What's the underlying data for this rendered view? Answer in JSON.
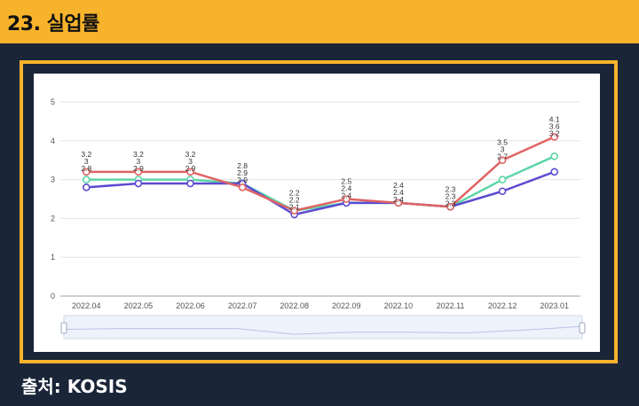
{
  "header": {
    "title": "23. 실업률"
  },
  "footer": {
    "source_label": "출처: KOSIS"
  },
  "colors": {
    "header_bg": "#f7b32b",
    "page_bg": "#1a2538",
    "series_red": "#e06464",
    "series_green": "#5ed6a8",
    "series_blue": "#5b4bd1"
  },
  "chart_data": {
    "type": "line",
    "categories": [
      "2022.04",
      "2022.05",
      "2022.06",
      "2022.07",
      "2022.08",
      "2022.09",
      "2022.10",
      "2022.11",
      "2022.12",
      "2023.01"
    ],
    "ylim": [
      0,
      5
    ],
    "yticks": [
      0,
      1,
      2,
      3,
      4,
      5
    ],
    "grid": true,
    "legend": "none",
    "series": [
      {
        "color": "#e06464",
        "values": [
          3.2,
          3.2,
          3.2,
          2.8,
          2.2,
          2.5,
          2.4,
          2.3,
          3.5,
          4.1
        ]
      },
      {
        "color": "#5ed6a8",
        "values": [
          3,
          3,
          3,
          2.9,
          2.2,
          2.4,
          2.4,
          2.3,
          3,
          3.6
        ]
      },
      {
        "color": "#5b4bd1",
        "values": [
          2.8,
          2.9,
          2.9,
          2.9,
          2.1,
          2.4,
          2.4,
          2.3,
          2.7,
          3.2
        ]
      }
    ]
  }
}
